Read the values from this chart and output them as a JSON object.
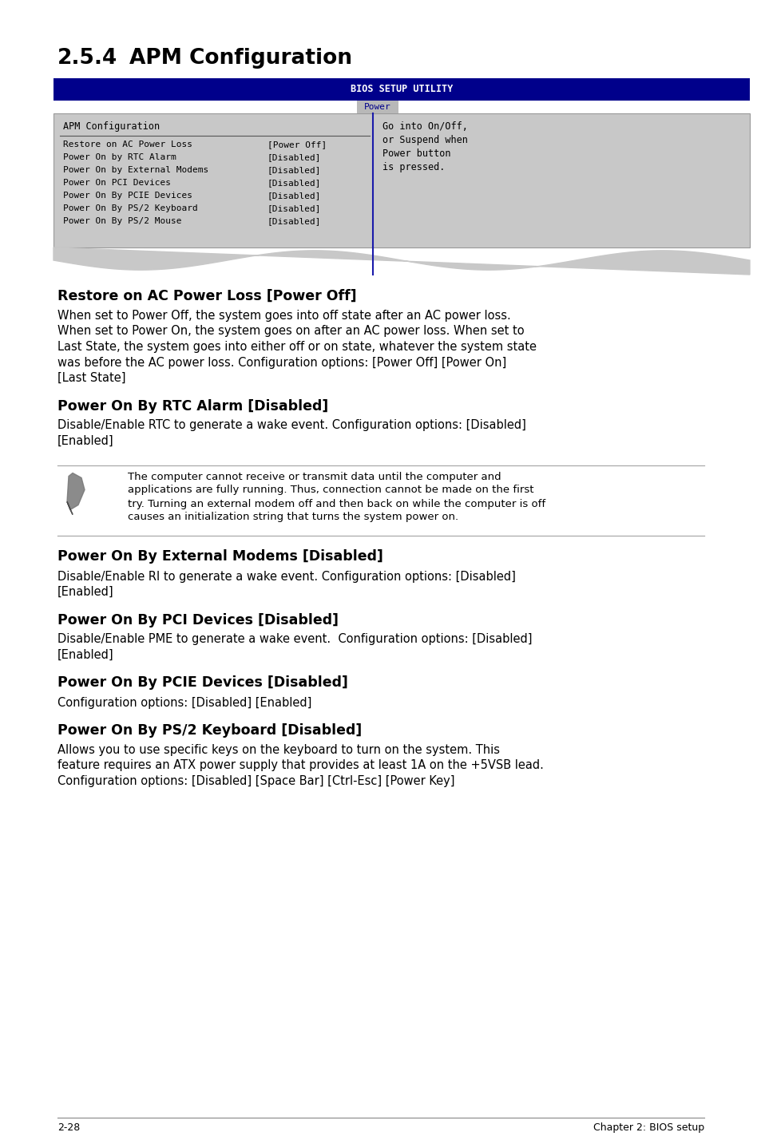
{
  "page_bg": "#ffffff",
  "section_number": "2.5.4",
  "section_title": "APM Configuration",
  "bios_header_bg": "#00008B",
  "bios_header_text": "BIOS SETUP UTILITY",
  "bios_header_text_color": "#ffffff",
  "tab_text": "Power",
  "tab_bg": "#b8b8b8",
  "tab_text_color": "#00008B",
  "bios_body_bg": "#c8c8c8",
  "bios_left_panel_title": "APM Configuration",
  "bios_menu_items": [
    [
      "Restore on AC Power Loss",
      "[Power Off]"
    ],
    [
      "Power On by RTC Alarm",
      "[Disabled]"
    ],
    [
      "Power On by External Modems",
      "[Disabled]"
    ],
    [
      "Power On PCI Devices",
      "[Disabled]"
    ],
    [
      "Power On By PCIE Devices",
      "[Disabled]"
    ],
    [
      "Power On By PS/2 Keyboard",
      "[Disabled]"
    ],
    [
      "Power On By PS/2 Mouse",
      "[Disabled]"
    ]
  ],
  "bios_right_lines": [
    "Go into On/Off,",
    "or Suspend when",
    "Power button",
    "is pressed."
  ],
  "wave_color": "#c8c8c8",
  "divider_color": "#1a1aaa",
  "sections": [
    {
      "heading": "Restore on AC Power Loss [Power Off]",
      "body_lines": [
        "When set to Power Off, the system goes into off state after an AC power loss.",
        "When set to Power On, the system goes on after an AC power loss. When set to",
        "Last State, the system goes into either off or on state, whatever the system state",
        "was before the AC power loss. Configuration options: [Power Off] [Power On]",
        "[Last State]"
      ]
    },
    {
      "heading": "Power On By RTC Alarm [Disabled]",
      "body_lines": [
        "Disable/Enable RTC to generate a wake event. Configuration options: [Disabled]",
        "[Enabled]"
      ]
    },
    {
      "heading": "Power On By External Modems [Disabled]",
      "body_lines": [
        "Disable/Enable RI to generate a wake event. Configuration options: [Disabled]",
        "[Enabled]"
      ]
    },
    {
      "heading": "Power On By PCI Devices [Disabled]",
      "body_lines": [
        "Disable/Enable PME to generate a wake event.  Configuration options: [Disabled]",
        "[Enabled]"
      ]
    },
    {
      "heading": "Power On By PCIE Devices [Disabled]",
      "body_lines": [
        "Configuration options: [Disabled] [Enabled]"
      ]
    },
    {
      "heading": "Power On By PS/2 Keyboard [Disabled]",
      "body_lines": [
        "Allows you to use specific keys on the keyboard to turn on the system. This",
        "feature requires an ATX power supply that provides at least 1A on the +5VSB lead.",
        "Configuration options: [Disabled] [Space Bar] [Ctrl-Esc] [Power Key]"
      ]
    }
  ],
  "note_lines": [
    "The computer cannot receive or transmit data until the computer and",
    "applications are fully running. Thus, connection cannot be made on the first",
    "try. Turning an external modem off and then back on while the computer is off",
    "causes an initialization string that turns the system power on."
  ],
  "footer_left": "2-28",
  "footer_right": "Chapter 2: BIOS setup"
}
